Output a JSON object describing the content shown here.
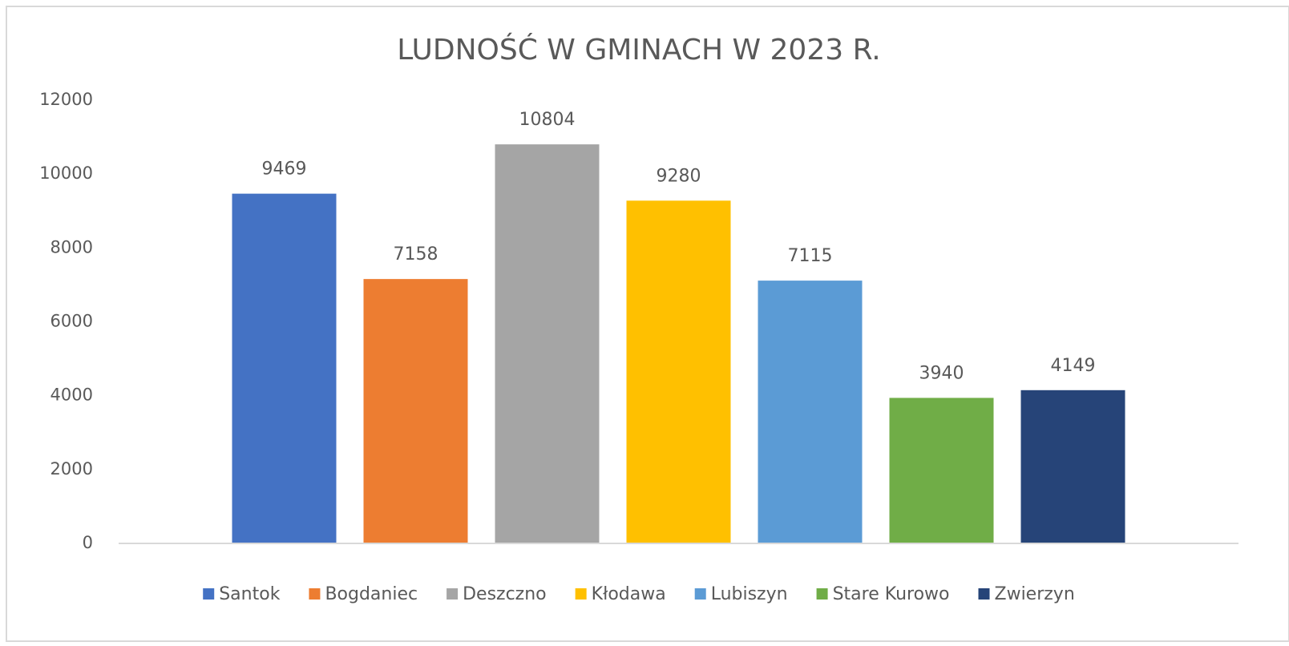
{
  "chart_data": {
    "type": "bar",
    "title": "LUDNOŚĆ W GMINACH W 2023 R.",
    "categories": [
      null
    ],
    "series": [
      {
        "name": "Santok",
        "color": "#4472c4",
        "values": [
          9469
        ]
      },
      {
        "name": "Bogdaniec",
        "color": "#ed7d31",
        "values": [
          7158
        ]
      },
      {
        "name": "Deszczno",
        "color": "#a5a5a5",
        "values": [
          10804
        ]
      },
      {
        "name": "Kłodawa",
        "color": "#ffc000",
        "values": [
          9280
        ]
      },
      {
        "name": "Lubiszyn",
        "color": "#5b9bd5",
        "values": [
          7115
        ]
      },
      {
        "name": "Stare Kurowo",
        "color": "#70ad47",
        "values": [
          3940
        ]
      },
      {
        "name": "Zwierzyn",
        "color": "#264478",
        "values": [
          4149
        ]
      }
    ],
    "ylim": [
      0,
      12000
    ],
    "yticks": [
      0,
      2000,
      4000,
      6000,
      8000,
      10000,
      12000
    ],
    "grid": false,
    "legend": "bottom"
  }
}
